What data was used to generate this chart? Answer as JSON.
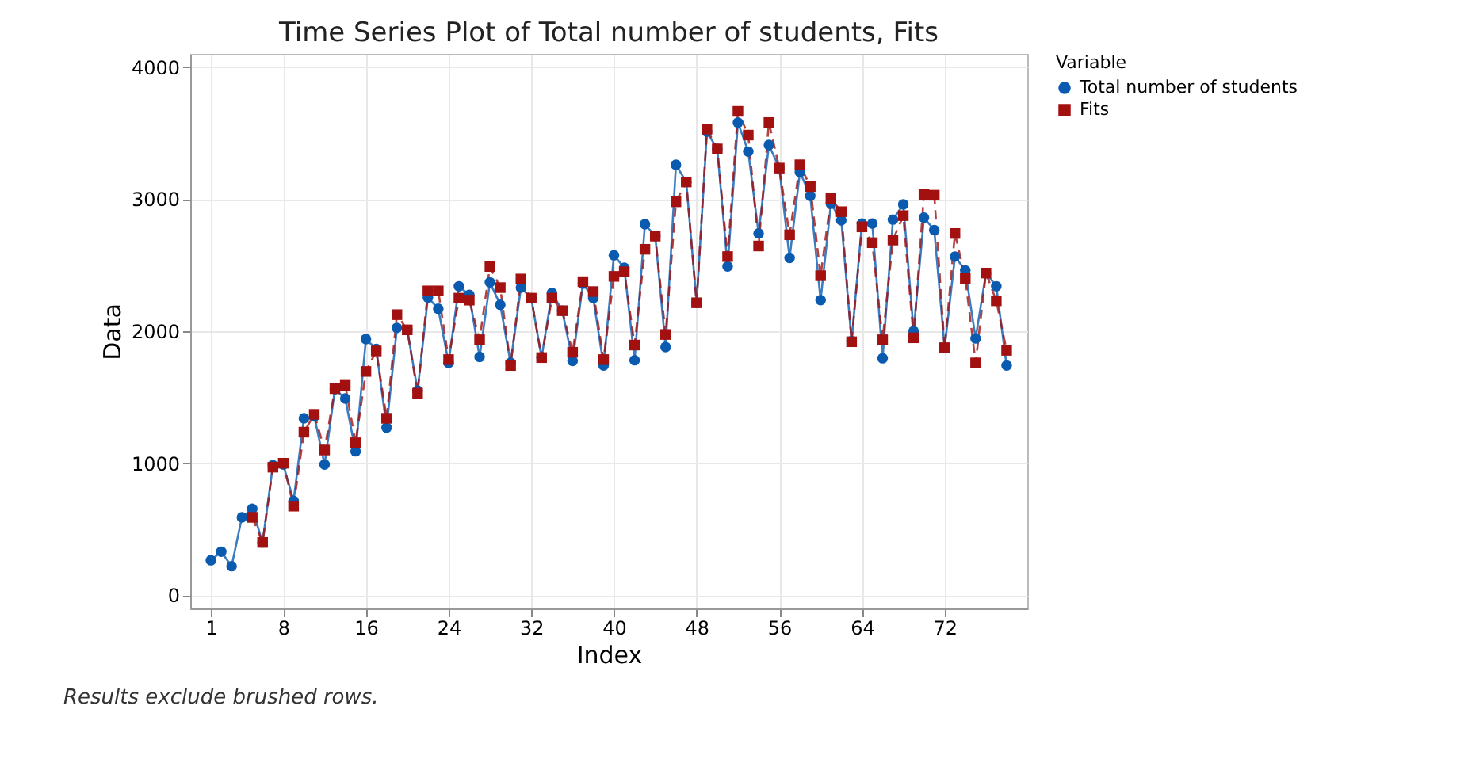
{
  "chart_data": {
    "type": "line",
    "title": "Time Series Plot of Total number of students, Fits",
    "xlabel": "Index",
    "ylabel": "Data",
    "legend_title": "Variable",
    "x": [
      1,
      2,
      3,
      4,
      5,
      6,
      7,
      8,
      9,
      10,
      11,
      12,
      13,
      14,
      15,
      16,
      17,
      18,
      19,
      20,
      21,
      22,
      23,
      24,
      25,
      26,
      27,
      28,
      29,
      30,
      31,
      32,
      33,
      34,
      35,
      36,
      37,
      38,
      39,
      40,
      41,
      42,
      43,
      44,
      45,
      46,
      47,
      48,
      49,
      50,
      51,
      52,
      53,
      54,
      55,
      56,
      57,
      58,
      59,
      60,
      61,
      62,
      63,
      64,
      65,
      66,
      67,
      68,
      69,
      70,
      71,
      72,
      73,
      74,
      75,
      76,
      77,
      78
    ],
    "series": [
      {
        "name": "Total number of students",
        "color": "#0a5bb0",
        "marker": "circle",
        "line_style": "solid",
        "values": [
          265,
          330,
          220,
          590,
          655,
          400,
          985,
          990,
          715,
          1340,
          1355,
          990,
          1560,
          1490,
          1090,
          1940,
          1865,
          1270,
          2025,
          2010,
          1550,
          2255,
          2170,
          1760,
          2340,
          2275,
          1805,
          2370,
          2200,
          1760,
          2330,
          2250,
          1800,
          2290,
          2155,
          1775,
          2360,
          2250,
          1740,
          2575,
          2480,
          1780,
          2810,
          2720,
          1880,
          3260,
          3130,
          2215,
          3510,
          3380,
          2490,
          3580,
          3360,
          2740,
          3410,
          3235,
          2555,
          3205,
          3025,
          2235,
          2965,
          2840,
          1925,
          2815,
          2815,
          1795,
          2845,
          2960,
          2000,
          2860,
          2765,
          1875,
          2565,
          2460,
          1945,
          2440,
          2340,
          1740
        ]
      },
      {
        "name": "Fits",
        "color": "#a31010",
        "marker": "square",
        "line_style": "dashed",
        "values": [
          null,
          null,
          null,
          null,
          590,
          400,
          970,
          1000,
          675,
          1235,
          1370,
          1100,
          1565,
          1590,
          1155,
          1695,
          1850,
          1340,
          2125,
          2010,
          1530,
          2305,
          2305,
          1785,
          2250,
          2235,
          1935,
          2490,
          2330,
          1740,
          2395,
          2250,
          1800,
          2250,
          2155,
          1840,
          2375,
          2300,
          1785,
          2415,
          2450,
          1895,
          2620,
          2720,
          1975,
          2980,
          3130,
          2215,
          3530,
          3380,
          2565,
          3665,
          3485,
          2645,
          3580,
          3235,
          2730,
          3260,
          3095,
          2420,
          3005,
          2905,
          1920,
          2790,
          2670,
          1935,
          2690,
          2875,
          1950,
          3035,
          3030,
          1875,
          2740,
          2400,
          1760,
          2440,
          2230,
          1855
        ]
      }
    ],
    "xlim": [
      -1,
      80
    ],
    "xticks": [
      1,
      8,
      16,
      24,
      32,
      40,
      48,
      56,
      64,
      72
    ],
    "ylim": [
      -100,
      4100
    ],
    "yticks": [
      0,
      1000,
      2000,
      3000,
      4000
    ],
    "grid": true,
    "legend": "top right",
    "annotations": [
      "Results exclude brushed rows."
    ]
  }
}
